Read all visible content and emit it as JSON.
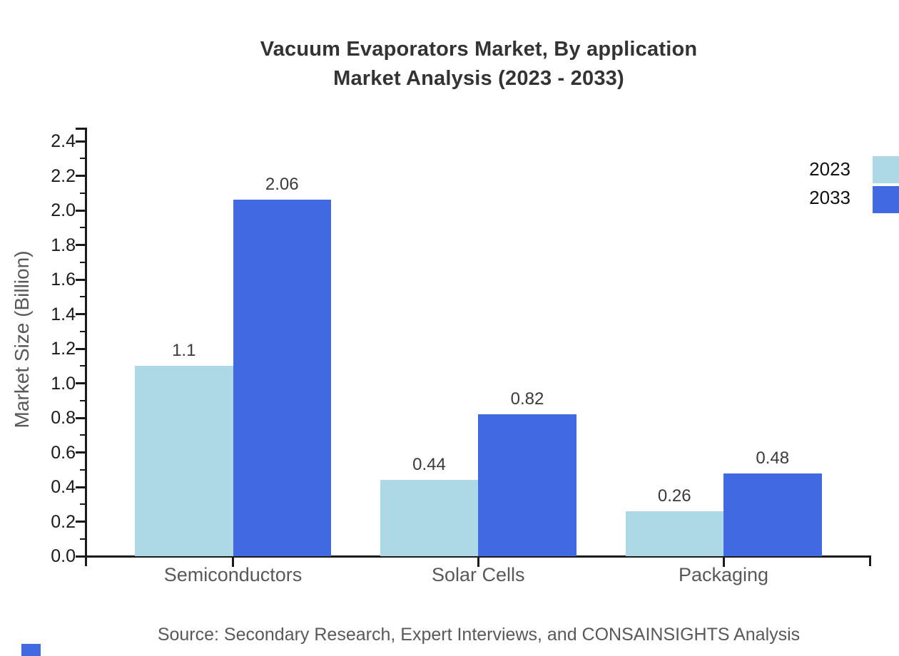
{
  "figure": {
    "title_line1": "Vacuum Evaporators Market, By application",
    "title_line2": "Market Analysis (2023 - 2033)",
    "source_note": "Source: Secondary Research, Expert Interviews, and CONSAINSIGHTS Analysis"
  },
  "chart_data": {
    "type": "bar",
    "title": "Vacuum Evaporators Market, By application Market Analysis (2023 - 2033)",
    "categories": [
      "Semiconductors",
      "Solar Cells",
      "Packaging"
    ],
    "series": [
      {
        "name": "2023",
        "color": "#ADD8E6",
        "values": [
          1.1,
          0.44,
          0.26
        ],
        "labels": [
          "1.1",
          "0.44",
          "0.26"
        ]
      },
      {
        "name": "2033",
        "color": "#4169E1",
        "values": [
          2.06,
          0.82,
          0.48
        ],
        "labels": [
          "2.06",
          "0.82",
          "0.48"
        ]
      }
    ],
    "xlabel": "",
    "ylabel": "Market Size (Billion)",
    "ylim": [
      0.0,
      2.4
    ],
    "ytick_step": 0.2,
    "ytick_labels": [
      "0.0",
      "0.2",
      "0.4",
      "0.6",
      "0.8",
      "1.0",
      "1.2",
      "1.4",
      "1.6",
      "1.8",
      "2.0",
      "2.2",
      "2.4"
    ],
    "minor_ticks_step": 0.1,
    "grid": false,
    "legend_position": "top-right",
    "value_labels_shown": true
  },
  "legend": {
    "items": [
      {
        "label": "2023",
        "color": "#ADD8E6"
      },
      {
        "label": "2033",
        "color": "#4169E1"
      }
    ]
  },
  "colors": {
    "background": "#FFFFFF",
    "axis": "#1A1A1A",
    "tick_label": "#1A1A1A",
    "value_label": "#3A3A3A",
    "category_label": "#595959",
    "title": "#333333",
    "muted_text": "#595959",
    "series_2023": "#ADD8E6",
    "series_2033": "#4169E1",
    "brand_mark": "#4169E1"
  }
}
